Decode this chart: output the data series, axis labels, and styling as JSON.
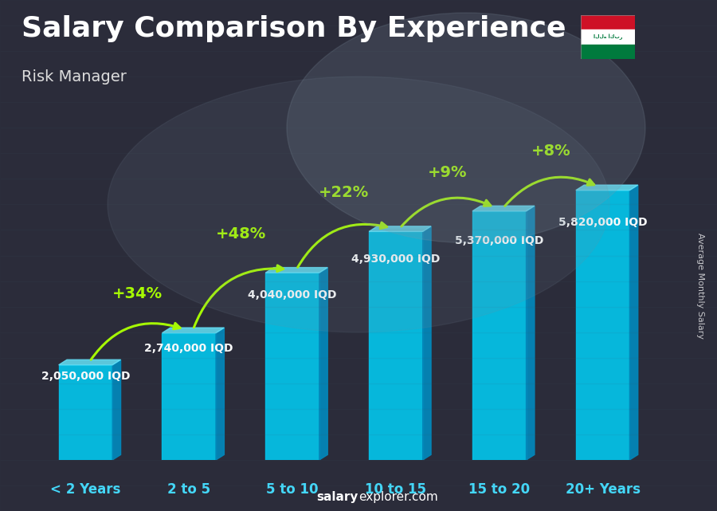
{
  "title": "Salary Comparison By Experience",
  "subtitle": "Risk Manager",
  "ylabel": "Average Monthly Salary",
  "watermark": "salaryexplorer.com",
  "categories": [
    "< 2 Years",
    "2 to 5",
    "5 to 10",
    "10 to 15",
    "15 to 20",
    "20+ Years"
  ],
  "values": [
    2050000,
    2740000,
    4040000,
    4930000,
    5370000,
    5820000
  ],
  "value_labels": [
    "2,050,000 IQD",
    "2,740,000 IQD",
    "4,040,000 IQD",
    "4,930,000 IQD",
    "5,370,000 IQD",
    "5,820,000 IQD"
  ],
  "pct_changes": [
    null,
    "+34%",
    "+48%",
    "+22%",
    "+9%",
    "+8%"
  ],
  "bar_color_face": "#00c8f0",
  "bar_color_side": "#0088bb",
  "bar_color_top": "#66e8ff",
  "arrow_color": "#aaff00",
  "pct_color": "#aaff00",
  "title_color": "#ffffff",
  "subtitle_color": "#dddddd",
  "label_color": "#ffffff",
  "xtick_color": "#44ddff",
  "bg_dark": "#2a2a38",
  "bg_mid": "#3a3a50",
  "ylim": [
    0,
    7500000
  ],
  "title_fontsize": 26,
  "subtitle_fontsize": 14,
  "ylabel_fontsize": 8,
  "value_fontsize": 10,
  "pct_fontsize": 14,
  "xtick_fontsize": 12
}
